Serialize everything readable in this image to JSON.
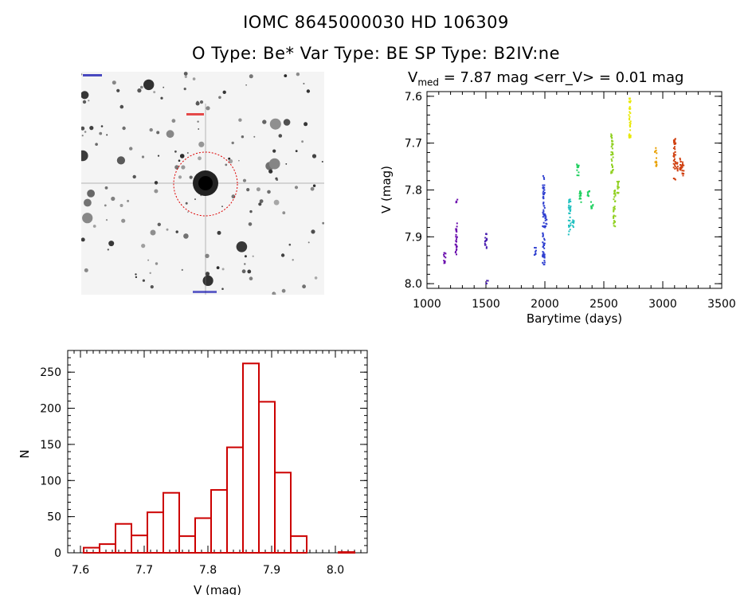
{
  "header": {
    "line1": "IOMC 8645000030    HD 106309",
    "line2": "O Type: Be*   Var Type: BE   SP Type: B2IV:ne"
  },
  "lightcurve_title": {
    "prefix": "V",
    "subscript": "med",
    "rest": " = 7.87 mag <err_V> = 0.01 mag"
  },
  "colors": {
    "hist": "#cc0000",
    "circle": "#dd0000",
    "finder_label": "#0000aa"
  },
  "chart_data": [
    {
      "type": "scatter",
      "xlabel": "Barytime (days)",
      "ylabel": "V (mag)",
      "xlim": [
        1000,
        3500
      ],
      "ylim": [
        8.01,
        7.59
      ],
      "y_inverted": true,
      "xticks": [
        1000,
        1500,
        2000,
        2500,
        3000,
        3500
      ],
      "yticks": [
        7.6,
        7.7,
        7.8,
        7.9,
        8.0
      ],
      "series": [
        {
          "color": "#6a0dad",
          "clusters": [
            [
              1150,
              7.93,
              7.96
            ],
            [
              1250,
              7.87,
              7.94
            ],
            [
              1250,
              7.82,
              7.83
            ]
          ]
        },
        {
          "color": "#4a1fb0",
          "clusters": [
            [
              1500,
              7.89,
              7.93
            ],
            [
              1510,
              7.99,
              8.0
            ]
          ]
        },
        {
          "color": "#3040d0",
          "clusters": [
            [
              1920,
              7.92,
              7.94
            ],
            [
              1990,
              7.77,
              7.96
            ],
            [
              2010,
              7.85,
              7.88
            ]
          ]
        },
        {
          "color": "#20c0c0",
          "clusters": [
            [
              2210,
              7.82,
              7.9
            ],
            [
              2240,
              7.86,
              7.88
            ]
          ]
        },
        {
          "color": "#20d060",
          "clusters": [
            [
              2280,
              7.74,
              7.77
            ],
            [
              2300,
              7.8,
              7.83
            ],
            [
              2370,
              7.8,
              7.82
            ],
            [
              2400,
              7.82,
              7.84
            ]
          ]
        },
        {
          "color": "#90d020",
          "clusters": [
            [
              2570,
              7.68,
              7.77
            ],
            [
              2590,
              7.8,
              7.88
            ],
            [
              2620,
              7.78,
              7.81
            ]
          ]
        },
        {
          "color": "#e8e800",
          "clusters": [
            [
              2720,
              7.6,
              7.69
            ]
          ]
        },
        {
          "color": "#e8a000",
          "clusters": [
            [
              2940,
              7.71,
              7.75
            ]
          ]
        },
        {
          "color": "#d04010",
          "clusters": [
            [
              3100,
              7.69,
              7.78
            ],
            [
              3120,
              7.74,
              7.76
            ],
            [
              3150,
              7.73,
              7.76
            ],
            [
              3170,
              7.74,
              7.77
            ]
          ]
        }
      ]
    },
    {
      "type": "bar",
      "xlabel": "V (mag)",
      "ylabel": "N",
      "xlim": [
        7.58,
        8.05
      ],
      "ylim": [
        0,
        280
      ],
      "xticks": [
        7.6,
        7.7,
        7.8,
        7.9,
        8.0
      ],
      "yticks": [
        0,
        50,
        100,
        150,
        200,
        250
      ],
      "bin_edges": [
        7.605,
        7.63,
        7.655,
        7.68,
        7.705,
        7.73,
        7.755,
        7.78,
        7.805,
        7.83,
        7.855,
        7.88,
        7.905,
        7.93,
        7.955,
        7.98,
        8.005,
        8.03
      ],
      "values": [
        7,
        12,
        40,
        24,
        56,
        83,
        23,
        48,
        87,
        146,
        262,
        209,
        111,
        23,
        0,
        0,
        1
      ]
    }
  ]
}
